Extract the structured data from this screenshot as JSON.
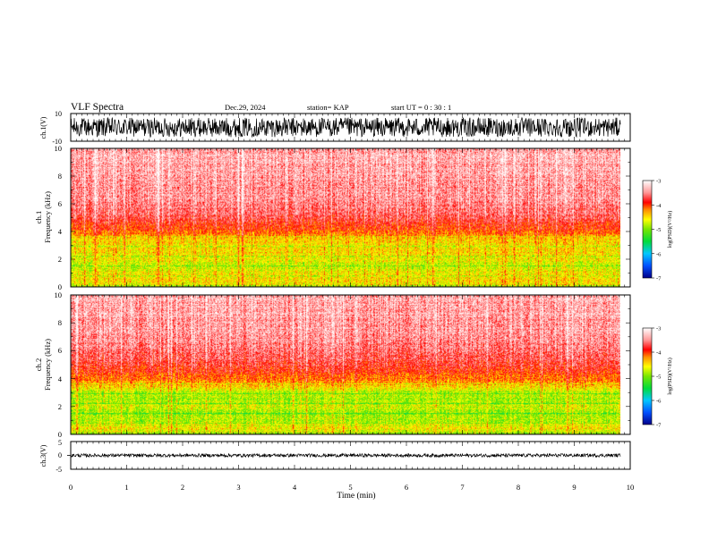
{
  "header": {
    "title": "VLF Spectra",
    "date": "Dec.29, 2024",
    "station": "station= KAP",
    "start": "start  UT =   0 : 30 : 1"
  },
  "colorbar": {
    "label": "log(PSD)(V²/Hz)",
    "ticks": [
      "-3",
      "-4",
      "-5",
      "-6",
      "-7"
    ],
    "range": [
      -7,
      -3
    ],
    "colors": [
      "#00008a",
      "#0050ff",
      "#00c8ff",
      "#00e000",
      "#b0f000",
      "#ffff00",
      "#ff8000",
      "#ff0000",
      "#ffb0b0",
      "#ffffff"
    ]
  },
  "chart_data": [
    {
      "type": "line",
      "name": "ch1-waveform",
      "ylabel": "ch.1(V)",
      "ylim": [
        -10,
        10
      ],
      "ytick_labels": [
        "10",
        "-10"
      ],
      "xlim": [
        0,
        10
      ],
      "x_end": 9.83,
      "y_amplitude": 7
    },
    {
      "type": "heatmap",
      "name": "ch1-spectrogram",
      "ylabel": "ch.1\nFrequency (kHz)",
      "ylim": [
        0,
        10
      ],
      "ytick_labels": [
        "0",
        "2",
        "4",
        "6",
        "8",
        "10"
      ],
      "xlim": [
        0,
        10
      ],
      "x_end": 9.83,
      "clim": [
        -7,
        -3
      ],
      "profile": [
        {
          "f": 0.0,
          "v": -4.6
        },
        {
          "f": 0.5,
          "v": -4.5
        },
        {
          "f": 1.0,
          "v": -4.6
        },
        {
          "f": 1.5,
          "v": -4.75
        },
        {
          "f": 2.0,
          "v": -4.6
        },
        {
          "f": 2.5,
          "v": -4.5
        },
        {
          "f": 3.0,
          "v": -4.55
        },
        {
          "f": 3.5,
          "v": -4.4
        },
        {
          "f": 4.0,
          "v": -4.05
        },
        {
          "f": 5.0,
          "v": -3.7
        },
        {
          "f": 6.0,
          "v": -3.5
        },
        {
          "f": 8.0,
          "v": -3.4
        },
        {
          "f": 10.0,
          "v": -3.35
        }
      ]
    },
    {
      "type": "heatmap",
      "name": "ch2-spectrogram",
      "ylabel": "ch.2\nFrequency (kHz)",
      "ylim": [
        0,
        10
      ],
      "ytick_labels": [
        "0",
        "2",
        "4",
        "6",
        "8",
        "10"
      ],
      "xlim": [
        0,
        10
      ],
      "x_end": 9.83,
      "clim": [
        -7,
        -3
      ],
      "profile": [
        {
          "f": 0.0,
          "v": -4.7
        },
        {
          "f": 0.5,
          "v": -4.6
        },
        {
          "f": 1.0,
          "v": -4.85
        },
        {
          "f": 1.5,
          "v": -4.9
        },
        {
          "f": 2.0,
          "v": -4.75
        },
        {
          "f": 2.5,
          "v": -4.9
        },
        {
          "f": 3.0,
          "v": -4.8
        },
        {
          "f": 3.5,
          "v": -4.4
        },
        {
          "f": 4.0,
          "v": -4.1
        },
        {
          "f": 5.0,
          "v": -3.8
        },
        {
          "f": 6.0,
          "v": -3.55
        },
        {
          "f": 8.0,
          "v": -3.4
        },
        {
          "f": 10.0,
          "v": -3.35
        }
      ]
    },
    {
      "type": "line",
      "name": "ch3-waveform",
      "ylabel": "ch.3(V)",
      "ylim": [
        -5,
        5
      ],
      "ytick_labels": [
        "5",
        "0",
        "-5"
      ],
      "xlim": [
        0,
        10
      ],
      "x_end": 9.83,
      "y_center": 0,
      "y_amplitude": 0.6,
      "xlabel": "Time (min)",
      "xtick_labels": [
        "0",
        "1",
        "2",
        "3",
        "4",
        "5",
        "6",
        "7",
        "8",
        "9",
        "10"
      ]
    }
  ]
}
